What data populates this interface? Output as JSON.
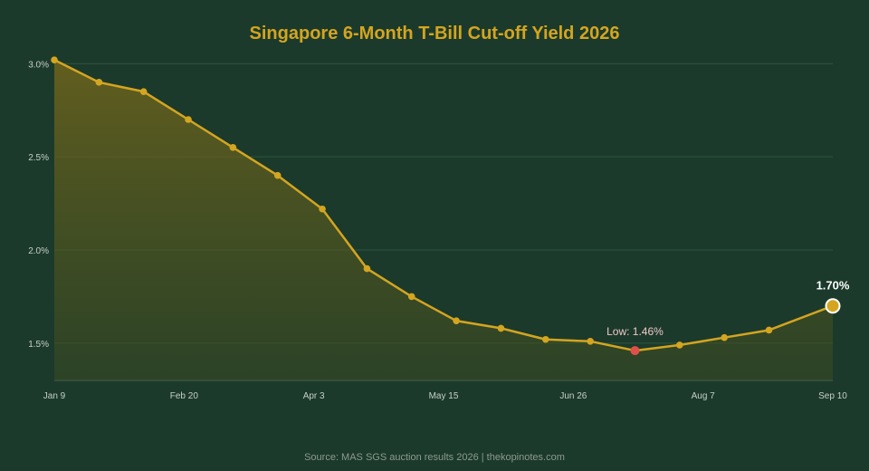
{
  "chart_data": {
    "type": "area",
    "title": "Singapore 6-Month T-Bill Cut-off Yield 2026",
    "source": "Source: MAS SGS auction results 2026 | thekopinotes.com",
    "x_tick_labels": [
      "Jan 9",
      "Feb 20",
      "Apr 3",
      "May 15",
      "Jun 26",
      "Aug 7",
      "Sep 10"
    ],
    "y_tick_labels": [
      "1.5%",
      "2.0%",
      "2.5%",
      "3.0%"
    ],
    "y_ticks": [
      1.5,
      2.0,
      2.5,
      3.0
    ],
    "ylim": [
      1.3,
      3.05
    ],
    "grid": true,
    "series": [
      {
        "x": [
          "2026-01-09",
          "2026-01-23",
          "2026-02-06",
          "2026-02-20",
          "2026-03-06",
          "2026-03-20",
          "2026-04-03",
          "2026-04-17",
          "2026-05-01",
          "2026-05-15",
          "2026-05-29",
          "2026-06-12",
          "2026-06-26",
          "2026-07-10",
          "2026-07-24",
          "2026-08-07",
          "2026-08-21",
          "2026-09-10"
        ],
        "values": [
          3.02,
          2.9,
          2.85,
          2.7,
          2.55,
          2.4,
          2.22,
          1.9,
          1.75,
          1.62,
          1.58,
          1.52,
          1.51,
          1.46,
          1.49,
          1.53,
          1.57,
          1.7
        ]
      }
    ],
    "annotations": {
      "low_label": "Low: 1.46%",
      "low_index": 13,
      "last_label": "1.70%"
    },
    "colors": {
      "line": "#d4a520",
      "low_point": "#e0504a",
      "grid": "#2f5441"
    }
  }
}
